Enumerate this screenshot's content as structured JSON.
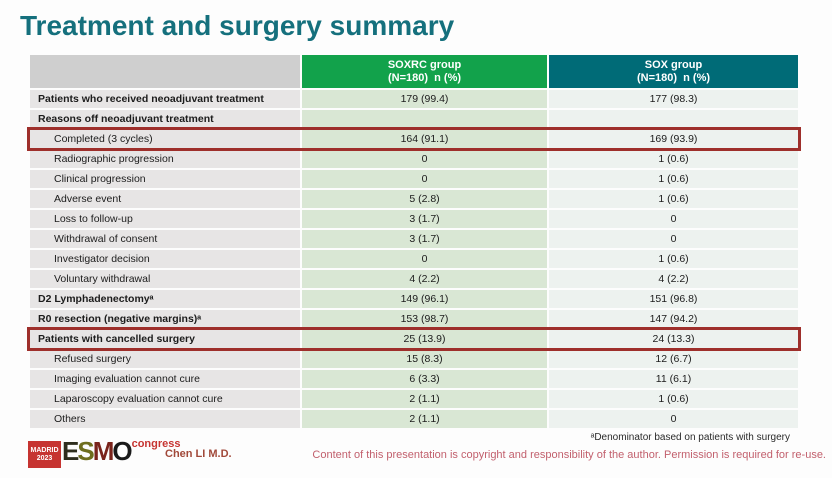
{
  "title": "Treatment and surgery summary",
  "table": {
    "columns": [
      {
        "label": "",
        "sublabel": ""
      },
      {
        "label": "SOXRC group",
        "sublabel": "(N=180)  n (%)"
      },
      {
        "label": "SOX group",
        "sublabel": "(N=180)  n (%)"
      }
    ],
    "rows": [
      {
        "label": "Patients who received neoadjuvant treatment",
        "soxrc": "179 (99.4)",
        "sox": "177 (98.3)",
        "style": "bold",
        "highlight": false
      },
      {
        "label": "Reasons off neoadjuvant treatment",
        "soxrc": "",
        "sox": "",
        "style": "bold",
        "highlight": false
      },
      {
        "label": "Completed (3 cycles)",
        "soxrc": "164 (91.1)",
        "sox": "169 (93.9)",
        "style": "indent",
        "highlight": true
      },
      {
        "label": "Radiographic progression",
        "soxrc": "0",
        "sox": "1 (0.6)",
        "style": "indent",
        "highlight": false
      },
      {
        "label": "Clinical progression",
        "soxrc": "0",
        "sox": "1 (0.6)",
        "style": "indent",
        "highlight": false
      },
      {
        "label": "Adverse event",
        "soxrc": "5 (2.8)",
        "sox": "1 (0.6)",
        "style": "indent",
        "highlight": false
      },
      {
        "label": "Loss to follow-up",
        "soxrc": "3 (1.7)",
        "sox": "0",
        "style": "indent",
        "highlight": false
      },
      {
        "label": "Withdrawal of consent",
        "soxrc": "3 (1.7)",
        "sox": "0",
        "style": "indent",
        "highlight": false
      },
      {
        "label": "Investigator decision",
        "soxrc": "0",
        "sox": "1 (0.6)",
        "style": "indent",
        "highlight": false
      },
      {
        "label": "Voluntary withdrawal",
        "soxrc": "4 (2.2)",
        "sox": "4 (2.2)",
        "style": "indent",
        "highlight": false
      },
      {
        "label": "D2 Lymphadenectomyᵃ",
        "soxrc": "149 (96.1)",
        "sox": "151 (96.8)",
        "style": "bold",
        "highlight": false
      },
      {
        "label": "R0 resection (negative margins)ᵃ",
        "soxrc": "153 (98.7)",
        "sox": "147 (94.2)",
        "style": "bold",
        "highlight": false
      },
      {
        "label": "Patients with cancelled surgery",
        "soxrc": "25 (13.9)",
        "sox": "24 (13.3)",
        "style": "bold",
        "highlight": true
      },
      {
        "label": "Refused surgery",
        "soxrc": "15 (8.3)",
        "sox": "12 (6.7)",
        "style": "indent",
        "highlight": false
      },
      {
        "label": "Imaging evaluation cannot cure",
        "soxrc": "6 (3.3)",
        "sox": "11 (6.1)",
        "style": "indent",
        "highlight": false
      },
      {
        "label": "Laparoscopy evaluation cannot cure",
        "soxrc": "2 (1.1)",
        "sox": "1 (0.6)",
        "style": "indent",
        "highlight": false
      },
      {
        "label": "Others",
        "soxrc": "2 (1.1)",
        "sox": "0",
        "style": "indent",
        "highlight": false
      }
    ]
  },
  "footnote": "ᵃDenominator based on patients with surgery",
  "author": "Chen LI M.D.",
  "copyright": "Content of this presentation is copyright and responsibility of the author. Permission is required for re-use.",
  "logo": {
    "city": "MADRID",
    "year": "2023",
    "letters": [
      "E",
      "S",
      "M",
      "O"
    ],
    "congress": "congress"
  },
  "colors": {
    "title": "#15707d",
    "soxrc_header": "#12a24b",
    "sox_header": "#006b77",
    "label_column": "#e7e5e5",
    "soxrc_column": "#d9e7d4",
    "sox_column": "#edf2ef",
    "highlight_border": "#9e2f2b",
    "copyright_text": "#c2606d"
  }
}
